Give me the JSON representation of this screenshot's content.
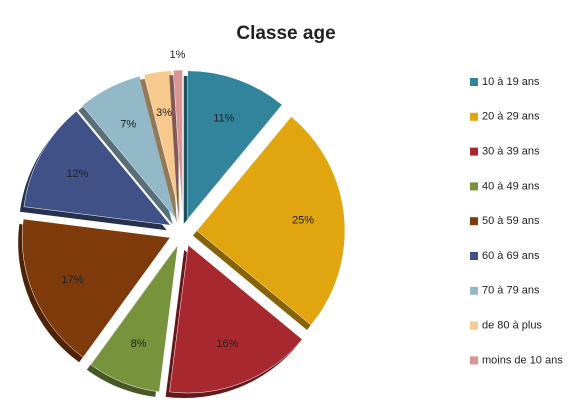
{
  "chart_data": {
    "type": "pie",
    "title": "Classe age",
    "categories": [
      "10 à 19 ans",
      "20 à 29 ans",
      "30 à 39 ans",
      "40 à 49 ans",
      "50 à 59 ans",
      "60 à 69 ans",
      "70 à 79 ans",
      "de 80 à plus",
      "moins de 10 ans"
    ],
    "values": [
      11,
      25,
      16,
      8,
      17,
      12,
      7,
      3,
      1
    ],
    "value_labels": [
      "11%",
      "25%",
      "16%",
      "8%",
      "17%",
      "12%",
      "7%",
      "3%",
      "1%"
    ],
    "colors": [
      "#31849b",
      "#e0a50f",
      "#a8282f",
      "#77933c",
      "#7f3a0c",
      "#3f5186",
      "#93b9c9",
      "#f8c98d",
      "#d99594"
    ],
    "legend": "right"
  }
}
